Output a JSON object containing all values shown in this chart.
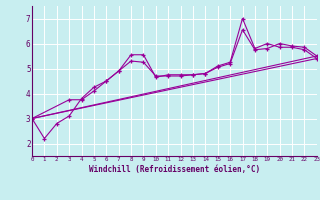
{
  "xlabel": "Windchill (Refroidissement éolien,°C)",
  "bg_color": "#c8eef0",
  "line_color": "#990099",
  "grid_color": "#ffffff",
  "xmin": 0,
  "xmax": 23,
  "ymin": 1.5,
  "ymax": 7.5,
  "yticks": [
    2,
    3,
    4,
    5,
    6,
    7
  ],
  "xticks": [
    0,
    1,
    2,
    3,
    4,
    5,
    6,
    7,
    8,
    9,
    10,
    11,
    12,
    13,
    14,
    15,
    16,
    17,
    18,
    19,
    20,
    21,
    22,
    23
  ],
  "series": [
    {
      "x": [
        0,
        1,
        2,
        3,
        4,
        5,
        6,
        7,
        8,
        9,
        10,
        11,
        12,
        13,
        14,
        15,
        16,
        17,
        18,
        19,
        20,
        21,
        22,
        23
      ],
      "y": [
        3.0,
        2.2,
        2.8,
        3.1,
        3.8,
        4.25,
        4.5,
        4.9,
        5.55,
        5.55,
        4.65,
        4.75,
        4.75,
        4.75,
        4.8,
        5.1,
        5.25,
        7.0,
        5.8,
        6.0,
        5.85,
        5.85,
        5.75,
        5.4
      ]
    },
    {
      "x": [
        0,
        3,
        4,
        5,
        6,
        7,
        8,
        9,
        10,
        11,
        12,
        13,
        14,
        15,
        16,
        17,
        18,
        19,
        20,
        21,
        22,
        23
      ],
      "y": [
        3.0,
        3.75,
        3.75,
        4.1,
        4.5,
        4.9,
        5.3,
        5.25,
        4.7,
        4.7,
        4.7,
        4.75,
        4.8,
        5.05,
        5.2,
        6.55,
        5.75,
        5.8,
        6.0,
        5.9,
        5.85,
        5.5
      ]
    },
    {
      "x": [
        0,
        23
      ],
      "y": [
        3.0,
        5.4
      ]
    },
    {
      "x": [
        0,
        23
      ],
      "y": [
        3.0,
        5.5
      ]
    }
  ]
}
